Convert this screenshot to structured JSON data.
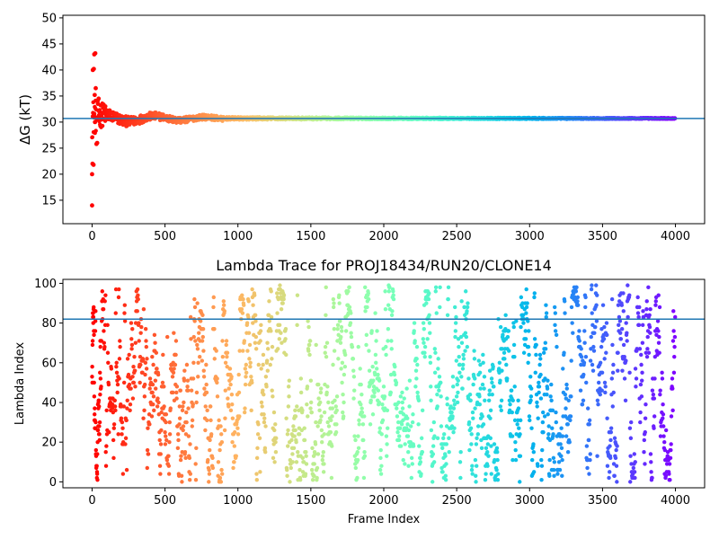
{
  "chart_data": [
    {
      "type": "scatter",
      "title": "",
      "xlabel": "",
      "ylabel": "ΔG (kT)",
      "xlim": [
        -200,
        4200
      ],
      "ylim": [
        10.5,
        50.5
      ],
      "xticks": [
        0,
        500,
        1000,
        1500,
        2000,
        2500,
        3000,
        3500,
        4000
      ],
      "yticks": [
        15,
        20,
        25,
        30,
        35,
        40,
        45,
        50
      ],
      "colormap": "rainbow (red at start, violet at end)",
      "grid": false,
      "hline": 30.7,
      "hline_color": "#1f77b4",
      "description_points": {
        "n_frames": 4000,
        "early_outliers": [
          [
            0,
            20.0
          ],
          [
            3,
            22.0
          ],
          [
            10,
            21.8
          ],
          [
            0,
            14.0
          ],
          [
            5,
            40.0
          ],
          [
            12,
            40.2
          ],
          [
            15,
            43.0
          ],
          [
            22,
            43.2
          ],
          [
            18,
            35.2
          ],
          [
            25,
            36.5
          ],
          [
            30,
            25.8
          ],
          [
            35,
            26.0
          ],
          [
            20,
            30.0
          ],
          [
            40,
            33.5
          ],
          [
            45,
            34.5
          ],
          [
            50,
            32.0
          ]
        ],
        "converged_value": 30.7
      }
    },
    {
      "type": "scatter",
      "title": "Lambda Trace for PROJ18434/RUN20/CLONE14",
      "xlabel": "Frame Index",
      "ylabel": "Lambda Index",
      "xlim": [
        -200,
        4200
      ],
      "ylim": [
        -3,
        102
      ],
      "xticks": [
        0,
        500,
        1000,
        1500,
        2000,
        2500,
        3000,
        3500,
        4000
      ],
      "yticks": [
        0,
        20,
        40,
        60,
        80,
        100
      ],
      "colormap": "rainbow (red at start, violet at end)",
      "grid": false,
      "hline": 82,
      "hline_color": "#1f77b4",
      "description_points": {
        "n_frames": 4000,
        "lambda_range": [
          0,
          99
        ],
        "lower_density_bias_late": true
      }
    }
  ]
}
